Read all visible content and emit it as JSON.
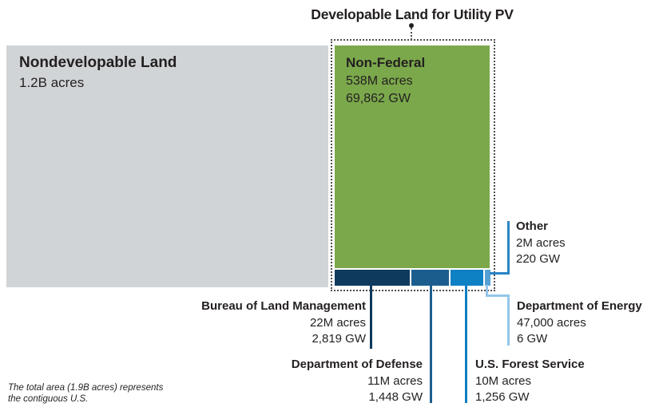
{
  "title": "Developable Land for Utility PV",
  "regions": {
    "nondevelopable": {
      "name": "Nondevelopable Land",
      "acres": "1.2B acres"
    },
    "non_federal": {
      "name": "Non-Federal",
      "acres": "538M acres",
      "gw": "69,862 GW"
    },
    "blm": {
      "name": "Bureau of Land Management",
      "acres": "22M acres",
      "gw": "2,819 GW"
    },
    "dod": {
      "name": "Department of Defense",
      "acres": "11M acres",
      "gw": "1,448 GW"
    },
    "usfs": {
      "name": "U.S. Forest Service",
      "acres": "10M acres",
      "gw": "1,256 GW"
    },
    "doe": {
      "name": "Department of Energy",
      "acres": "47,000 acres",
      "gw": "6 GW"
    },
    "other": {
      "name": "Other",
      "acres": "2M acres",
      "gw": "220 GW"
    }
  },
  "footnote": {
    "line1": "The total area (1.9B acres) represents",
    "line2": "the contiguous U.S."
  },
  "colors": {
    "nondevelopable_fill": "#d1d4d6",
    "non_federal_fill": "#7ba84b",
    "blm_fill": "#0e3a5d",
    "dod_fill": "#1b5e8e",
    "usfs_fill": "#0e80c4",
    "doe_fill": "#56a0d3",
    "other_connector": "#2b84c6",
    "doe_connector": "#93c6ea",
    "text": "#231f20"
  },
  "chart_data": {
    "type": "treemap",
    "title": "Developable Land for Utility PV",
    "note": "The total area (1.9B acres) represents the contiguous U.S.",
    "total_area_acres_billions": 1.9,
    "units": {
      "area": "acres",
      "capacity": "GW"
    },
    "items": [
      {
        "name": "Nondevelopable Land",
        "acres_label": "1.2B acres",
        "acres_millions": 1200,
        "capacity_gw": null,
        "group": "nondevelopable",
        "color": "#d1d4d6"
      },
      {
        "name": "Non-Federal",
        "acres_label": "538M acres",
        "acres_millions": 538,
        "capacity_gw": 69862,
        "group": "developable",
        "color": "#7ba84b"
      },
      {
        "name": "Bureau of Land Management",
        "acres_label": "22M acres",
        "acres_millions": 22,
        "capacity_gw": 2819,
        "group": "developable",
        "color": "#0e3a5d"
      },
      {
        "name": "Department of Defense",
        "acres_label": "11M acres",
        "acres_millions": 11,
        "capacity_gw": 1448,
        "group": "developable",
        "color": "#1b5e8e"
      },
      {
        "name": "U.S. Forest Service",
        "acres_label": "10M acres",
        "acres_millions": 10,
        "capacity_gw": 1256,
        "group": "developable",
        "color": "#0e80c4"
      },
      {
        "name": "Department of Energy",
        "acres_label": "47,000 acres",
        "acres_millions": 0.047,
        "capacity_gw": 6,
        "group": "developable",
        "color": "#56a0d3"
      },
      {
        "name": "Other",
        "acres_label": "2M acres",
        "acres_millions": 2,
        "capacity_gw": 220,
        "group": "developable",
        "color": "#2b84c6"
      }
    ],
    "legend_position": "none",
    "grid": false
  }
}
